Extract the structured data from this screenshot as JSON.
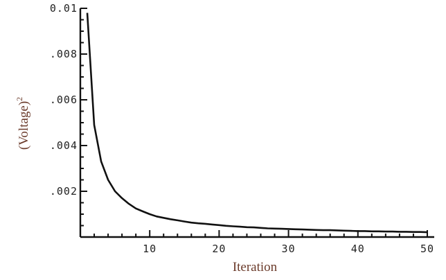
{
  "chart_data": {
    "type": "line",
    "xlabel": "Iteration",
    "ylabel_base": "(Voltage)",
    "ylabel_sup": "2",
    "xlim": [
      0,
      51
    ],
    "ylim": [
      0,
      0.01
    ],
    "x_major_ticks": [
      {
        "value": 10,
        "label": "10"
      },
      {
        "value": 20,
        "label": "20"
      },
      {
        "value": 30,
        "label": "30"
      },
      {
        "value": 40,
        "label": "40"
      },
      {
        "value": 50,
        "label": "50"
      }
    ],
    "y_major_ticks": [
      {
        "value": 0.002,
        "label": ".002"
      },
      {
        "value": 0.004,
        "label": ".004"
      },
      {
        "value": 0.006,
        "label": ".006"
      },
      {
        "value": 0.008,
        "label": ".008"
      },
      {
        "value": 0.01,
        "label": "0.01"
      }
    ],
    "x_minor_step": 2,
    "y_minor_step": 0.0005,
    "grid": false,
    "series": [
      {
        "x": [
          1,
          2,
          3,
          4,
          5,
          6,
          7,
          8,
          9,
          10,
          11,
          12,
          13,
          14,
          15,
          16,
          17,
          18,
          19,
          20,
          21,
          22,
          23,
          24,
          25,
          26,
          27,
          28,
          29,
          30,
          31,
          32,
          33,
          34,
          35,
          36,
          37,
          38,
          39,
          40,
          41,
          42,
          43,
          44,
          45,
          46,
          47,
          48,
          49,
          50
        ],
        "y": [
          0.0098,
          0.0049,
          0.0033,
          0.0025,
          0.002,
          0.0017,
          0.00145,
          0.00125,
          0.00112,
          0.001,
          0.0009,
          0.00084,
          0.00078,
          0.00073,
          0.00068,
          0.00063,
          0.0006,
          0.00058,
          0.00055,
          0.00052,
          0.00049,
          0.00047,
          0.00045,
          0.00043,
          0.00042,
          0.0004,
          0.00038,
          0.00037,
          0.00036,
          0.00035,
          0.00034,
          0.00033,
          0.00032,
          0.00031,
          0.0003,
          0.0003,
          0.00029,
          0.00028,
          0.00027,
          0.00026,
          0.00026,
          0.00025,
          0.00025,
          0.00024,
          0.00024,
          0.00023,
          0.00023,
          0.00022,
          0.00022,
          0.00021
        ]
      }
    ]
  }
}
